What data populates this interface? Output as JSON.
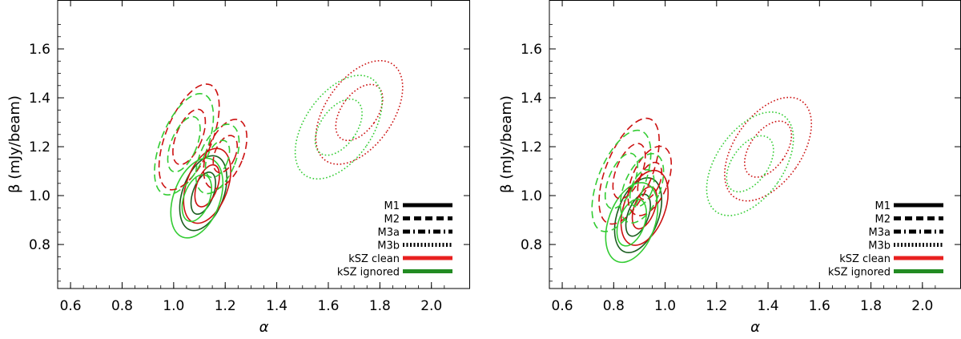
{
  "chart_data": [
    {
      "type": "contour",
      "xlabel": "α",
      "ylabel": "β (mJy/beam)",
      "xlim": [
        0.55,
        2.15
      ],
      "ylim": [
        0.62,
        1.8
      ],
      "xticks": [
        "0.6",
        "0.8",
        "1.0",
        "1.2",
        "1.4",
        "1.6",
        "1.8",
        "2.0"
      ],
      "yticks": [
        "0.8",
        "1.0",
        "1.2",
        "1.4",
        "1.6"
      ],
      "legend_position": "bottom-right",
      "legend": [
        {
          "label": "M1",
          "style": "solid",
          "color": "#000000"
        },
        {
          "label": "M2",
          "style": "dashed",
          "color": "#000000"
        },
        {
          "label": "M3a",
          "style": "dashdot",
          "color": "#000000"
        },
        {
          "label": "M3b",
          "style": "dotted",
          "color": "#000000"
        },
        {
          "label": "kSZ clean",
          "style": "solid",
          "color": "#e8201f"
        },
        {
          "label": "kSZ ignored",
          "style": "solid",
          "color": "#228b22"
        }
      ],
      "contours": [
        {
          "model": "M1",
          "variant": "kSZ ignored",
          "color": "#1b5e20",
          "style": "solid",
          "center": [
            1.115,
            1.01
          ],
          "rx": [
            0.04,
            0.08
          ],
          "ry": [
            0.09,
            0.16
          ],
          "angle": 20
        },
        {
          "model": "M1",
          "variant": "kSZ clean",
          "color": "#cc1111",
          "style": "solid",
          "center": [
            1.13,
            1.04
          ],
          "rx": [
            0.04,
            0.08
          ],
          "ry": [
            0.09,
            0.16
          ],
          "angle": 20
        },
        {
          "model": "M1",
          "variant": "kSZ ignored",
          "color": "#33cc33",
          "style": "solid",
          "center": [
            1.09,
            0.99
          ],
          "rx": [
            0.05,
            0.09
          ],
          "ry": [
            0.1,
            0.17
          ],
          "angle": 20
        },
        {
          "model": "M2",
          "variant": "kSZ clean",
          "color": "#cc1111",
          "style": "dashed",
          "center": [
            1.06,
            1.24
          ],
          "rx": [
            0.05,
            0.09
          ],
          "ry": [
            0.12,
            0.23
          ],
          "angle": 22
        },
        {
          "model": "M2",
          "variant": "kSZ ignored",
          "color": "#33cc33",
          "style": "dashed",
          "center": [
            1.04,
            1.21
          ],
          "rx": [
            0.05,
            0.09
          ],
          "ry": [
            0.12,
            0.22
          ],
          "angle": 22
        },
        {
          "model": "M3a",
          "variant": "kSZ clean",
          "color": "#cc1111",
          "style": "dashed",
          "center": [
            1.2,
            1.17
          ],
          "rx": [
            0.04,
            0.07
          ],
          "ry": [
            0.08,
            0.15
          ],
          "angle": 22
        },
        {
          "model": "M3a",
          "variant": "kSZ ignored",
          "color": "#33cc33",
          "style": "dashed",
          "center": [
            1.17,
            1.15
          ],
          "rx": [
            0.04,
            0.07
          ],
          "ry": [
            0.08,
            0.15
          ],
          "angle": 22
        },
        {
          "model": "M3b",
          "variant": "kSZ clean",
          "color": "#cc1111",
          "style": "dotted",
          "center": [
            1.72,
            1.34
          ],
          "rx": [
            0.07,
            0.13
          ],
          "ry": [
            0.13,
            0.24
          ],
          "angle": 35
        },
        {
          "model": "M3b",
          "variant": "kSZ ignored",
          "color": "#33cc33",
          "style": "dotted",
          "center": [
            1.64,
            1.28
          ],
          "rx": [
            0.07,
            0.13
          ],
          "ry": [
            0.13,
            0.24
          ],
          "angle": 35
        }
      ]
    },
    {
      "type": "contour",
      "xlabel": "α",
      "ylabel": "β (mJy/beam)",
      "xlim": [
        0.55,
        2.15
      ],
      "ylim": [
        0.62,
        1.8
      ],
      "xticks": [
        "0.6",
        "0.8",
        "1.0",
        "1.2",
        "1.4",
        "1.6",
        "1.8",
        "2.0"
      ],
      "yticks": [
        "0.8",
        "1.0",
        "1.2",
        "1.4",
        "1.6"
      ],
      "legend_position": "bottom-right",
      "legend": [
        {
          "label": "M1",
          "style": "solid",
          "color": "#000000"
        },
        {
          "label": "M2",
          "style": "dashed",
          "color": "#000000"
        },
        {
          "label": "M3a",
          "style": "dashdot",
          "color": "#000000"
        },
        {
          "label": "M3b",
          "style": "dotted",
          "color": "#000000"
        },
        {
          "label": "kSZ clean",
          "style": "solid",
          "color": "#e8201f"
        },
        {
          "label": "kSZ ignored",
          "style": "solid",
          "color": "#228b22"
        }
      ],
      "contours": [
        {
          "model": "M1",
          "variant": "kSZ ignored",
          "color": "#1b5e20",
          "style": "solid",
          "center": [
            0.895,
            0.92
          ],
          "rx": [
            0.04,
            0.08
          ],
          "ry": [
            0.09,
            0.16
          ],
          "angle": 20
        },
        {
          "model": "M1",
          "variant": "kSZ clean",
          "color": "#cc1111",
          "style": "solid",
          "center": [
            0.92,
            0.95
          ],
          "rx": [
            0.04,
            0.08
          ],
          "ry": [
            0.09,
            0.16
          ],
          "angle": 20
        },
        {
          "model": "M1",
          "variant": "kSZ ignored",
          "color": "#33cc33",
          "style": "solid",
          "center": [
            0.87,
            0.89
          ],
          "rx": [
            0.05,
            0.09
          ],
          "ry": [
            0.1,
            0.17
          ],
          "angle": 20
        },
        {
          "model": "M2",
          "variant": "kSZ clean",
          "color": "#cc1111",
          "style": "dashed",
          "center": [
            0.86,
            1.1
          ],
          "rx": [
            0.05,
            0.09
          ],
          "ry": [
            0.12,
            0.23
          ],
          "angle": 22
        },
        {
          "model": "M2",
          "variant": "kSZ ignored",
          "color": "#33cc33",
          "style": "dashed",
          "center": [
            0.83,
            1.06
          ],
          "rx": [
            0.05,
            0.09
          ],
          "ry": [
            0.12,
            0.22
          ],
          "angle": 22
        },
        {
          "model": "M3a",
          "variant": "kSZ clean",
          "color": "#cc1111",
          "style": "dashed",
          "center": [
            0.94,
            1.06
          ],
          "rx": [
            0.04,
            0.07
          ],
          "ry": [
            0.08,
            0.15
          ],
          "angle": 22
        },
        {
          "model": "M3a",
          "variant": "kSZ ignored",
          "color": "#33cc33",
          "style": "dashed",
          "center": [
            0.91,
            1.03
          ],
          "rx": [
            0.04,
            0.07
          ],
          "ry": [
            0.08,
            0.15
          ],
          "angle": 22
        },
        {
          "model": "M3b",
          "variant": "kSZ clean",
          "color": "#cc1111",
          "style": "dotted",
          "center": [
            1.4,
            1.19
          ],
          "rx": [
            0.07,
            0.13
          ],
          "ry": [
            0.13,
            0.24
          ],
          "angle": 35
        },
        {
          "model": "M3b",
          "variant": "kSZ ignored",
          "color": "#33cc33",
          "style": "dotted",
          "center": [
            1.33,
            1.13
          ],
          "rx": [
            0.07,
            0.13
          ],
          "ry": [
            0.13,
            0.24
          ],
          "angle": 35
        }
      ]
    }
  ]
}
